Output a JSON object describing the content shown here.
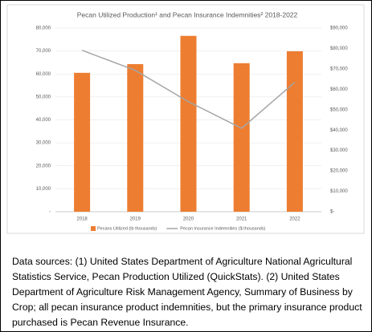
{
  "chart_data": {
    "type": "bar",
    "title": "Pecan Utilized Production¹ and Pecan Insurance Indemnities² 2018-2022",
    "categories": [
      "2018",
      "2019",
      "2020",
      "2021",
      "2022"
    ],
    "series": [
      {
        "name": "Pecans Utilized (lb thousands)",
        "color": "#ed7d31",
        "values": [
          60500,
          64300,
          76600,
          64700,
          69900
        ]
      },
      {
        "name": "Pecan Insurance Indemnities ($ thousands)",
        "color": "#a5a5a5",
        "type": "line",
        "axis": "y2",
        "values": [
          79100,
          69300,
          53900,
          40900,
          63400
        ]
      }
    ],
    "ylim": [
      0,
      80000
    ],
    "yticks": [
      {
        "value": 0,
        "label": "-"
      },
      {
        "value": 10000,
        "label": "10,000"
      },
      {
        "value": 20000,
        "label": "20,000"
      },
      {
        "value": 30000,
        "label": "30,000"
      },
      {
        "value": 40000,
        "label": "40,000"
      },
      {
        "value": 50000,
        "label": "50,000"
      },
      {
        "value": 60000,
        "label": "60,000"
      },
      {
        "value": 70000,
        "label": "70,000"
      },
      {
        "value": 80000,
        "label": "80,000"
      }
    ],
    "y2lim": [
      0,
      90000
    ],
    "y2ticks": [
      {
        "value": 0,
        "label": "$-"
      },
      {
        "value": 10000,
        "label": "$10,000"
      },
      {
        "value": 20000,
        "label": "$20,000"
      },
      {
        "value": 30000,
        "label": "$30,000"
      },
      {
        "value": 40000,
        "label": "$40,000"
      },
      {
        "value": 50000,
        "label": "$50,000"
      },
      {
        "value": 60000,
        "label": "$60,000"
      },
      {
        "value": 70000,
        "label": "$70,000"
      },
      {
        "value": 80000,
        "label": "$80,000"
      },
      {
        "value": 90000,
        "label": "$90,000"
      }
    ],
    "legend": "bottom"
  },
  "caption": "Data sources: (1) United States Department of Agriculture National Agricultural Statistics Service, Pecan Production Utilized (QuickStats). (2) United States Department of Agriculture Risk Management Agency, Summary of Business by Crop; all pecan insurance product indemnities, but the primary insurance product purchased is Pecan Revenue Insurance."
}
